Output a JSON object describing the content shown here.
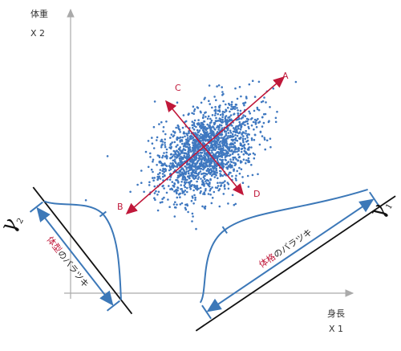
{
  "axes": {
    "y_label": "体重",
    "y_symbol": "X 2",
    "x_label": "身長",
    "x_symbol": "X 1"
  },
  "components": {
    "a": "A",
    "b": "B",
    "c": "C",
    "d": "D"
  },
  "gamma1": {
    "symbol": "γ",
    "subscript": "1",
    "text_red": "体格",
    "text_rest": "のバラツキ"
  },
  "gamma2": {
    "symbol": "γ",
    "subscript": "2",
    "text_red": "体型",
    "text_rest": "のバラツキ"
  }
}
